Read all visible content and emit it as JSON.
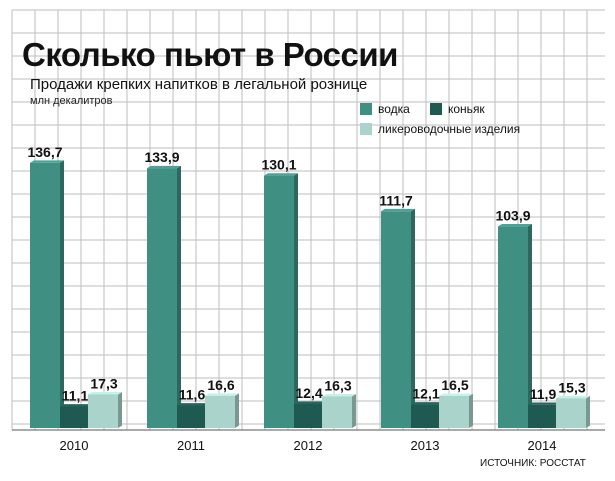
{
  "header": {
    "title": "Сколько  пьют в России",
    "subtitle": "Продажи крепких напитков в легальной рознице",
    "unit": "млн декалитров"
  },
  "source": "ИСТОЧНИК: РОССТАТ",
  "colors": {
    "vodka": "#3f8f82",
    "cognac": "#1f5a52",
    "liqueur": "#a9d3cb",
    "grid": "#bdbdbd",
    "background": "#ffffff"
  },
  "chart_data": {
    "type": "bar",
    "title": "Сколько  пьют в России",
    "subtitle": "Продажи крепких напитков в легальной рознице",
    "ylabel": "млн декалитров",
    "categories": [
      "2010",
      "2011",
      "2012",
      "2013",
      "2014"
    ],
    "series": [
      {
        "name": "водка",
        "values": [
          136.7,
          133.9,
          130.1,
          111.7,
          103.9
        ],
        "labels": [
          "136,7",
          "133,9",
          "130,1",
          "111,7",
          "103,9"
        ]
      },
      {
        "name": "коньяк",
        "values": [
          11.1,
          11.6,
          12.4,
          12.1,
          11.9
        ],
        "labels": [
          "11,1",
          "11,6",
          "12,4",
          "12,1",
          "11,9"
        ]
      },
      {
        "name": "ликероводочные изделия",
        "values": [
          17.3,
          16.6,
          16.3,
          16.5,
          15.3
        ],
        "labels": [
          "17,3",
          "16,6",
          "16,3",
          "16,5",
          "15,3"
        ]
      }
    ],
    "ylim": [
      0,
      140
    ],
    "grid": true,
    "legend_position": "top-right"
  }
}
